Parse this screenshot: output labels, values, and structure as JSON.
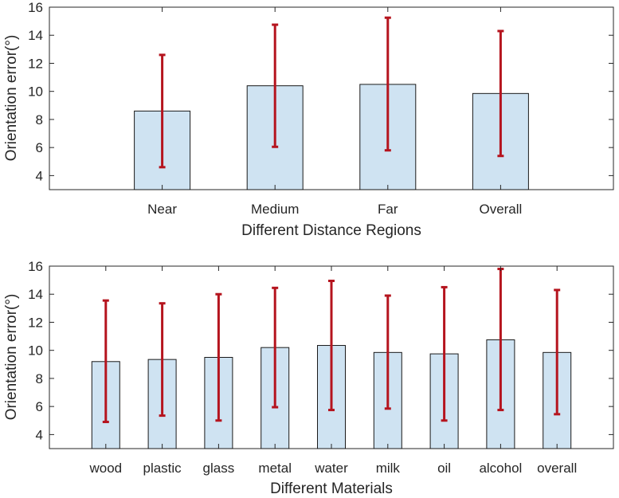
{
  "chart_data": [
    {
      "type": "bar",
      "categories": [
        "Near",
        "Medium",
        "Far",
        "Overall"
      ],
      "values": [
        8.6,
        10.4,
        10.5,
        9.85
      ],
      "error_low": [
        4.6,
        6.05,
        5.8,
        5.4
      ],
      "error_high": [
        12.6,
        14.75,
        15.25,
        14.3
      ],
      "xlabel": "Different Distance Regions",
      "ylabel": "Orientation error(°)",
      "ylim": [
        3,
        16
      ],
      "yticks": [
        4,
        6,
        8,
        10,
        12,
        14,
        16
      ],
      "bar_color": "#cfe3f2",
      "error_color": "#b5141e"
    },
    {
      "type": "bar",
      "categories": [
        "wood",
        "plastic",
        "glass",
        "metal",
        "water",
        "milk",
        "oil",
        "alcohol",
        "overall"
      ],
      "values": [
        9.2,
        9.35,
        9.5,
        10.2,
        10.35,
        9.85,
        9.75,
        10.75,
        9.85
      ],
      "error_low": [
        4.9,
        5.35,
        5.0,
        5.95,
        5.75,
        5.85,
        5.0,
        5.75,
        5.45
      ],
      "error_high": [
        13.55,
        13.35,
        14.0,
        14.45,
        14.95,
        13.9,
        14.5,
        15.8,
        14.3
      ],
      "xlabel": "Different Materials",
      "ylabel": "Orientation error(°)",
      "ylim": [
        3,
        16
      ],
      "yticks": [
        4,
        6,
        8,
        10,
        12,
        14,
        16
      ],
      "bar_color": "#cfe3f2",
      "error_color": "#b5141e"
    }
  ]
}
